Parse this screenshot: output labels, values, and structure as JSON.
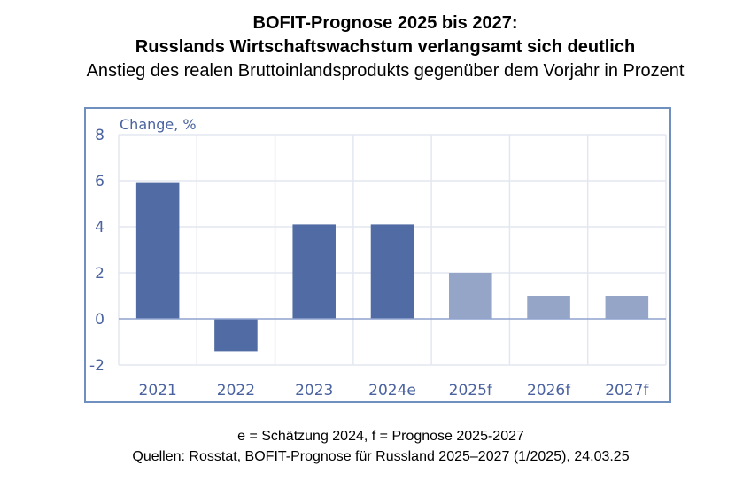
{
  "header": {
    "title_line1": "BOFIT-Prognose 2025 bis 2027:",
    "title_line2": "Russlands Wirtschaftswachstum verlangsamt sich deutlich",
    "subtitle": "Anstieg des realen Bruttoinlandsprodukts gegenüber dem Vorjahr in Prozent"
  },
  "footer": {
    "note": "e = Schätzung 2024, f = Prognose 2025-2027",
    "sources": "Quellen: Rosstat, BOFIT-Prognose für Russland 2025–2027 (1/2025), 24.03.25"
  },
  "chart_data": {
    "type": "bar",
    "title": "BOFIT-Prognose 2025 bis 2027",
    "ylabel": "Change, %",
    "xlabel": "",
    "categories": [
      "2021",
      "2022",
      "2023",
      "2024e",
      "2025f",
      "2026f",
      "2027f"
    ],
    "values": [
      5.9,
      -1.4,
      4.1,
      4.1,
      2.0,
      1.0,
      1.0
    ],
    "kinds": [
      "actual",
      "actual",
      "actual",
      "estimate",
      "forecast",
      "forecast",
      "forecast"
    ],
    "ylim": [
      -2,
      8
    ],
    "yticks": [
      "-2",
      "0",
      "2",
      "4",
      "6",
      "8"
    ],
    "grid": true,
    "colors": {
      "actual": "#516ca4",
      "estimate": "#516ca4",
      "forecast": "#94a5c8",
      "frame": "#6f8fbf",
      "grid": "#e3e7f1",
      "axis": "#8fa3cf"
    }
  }
}
